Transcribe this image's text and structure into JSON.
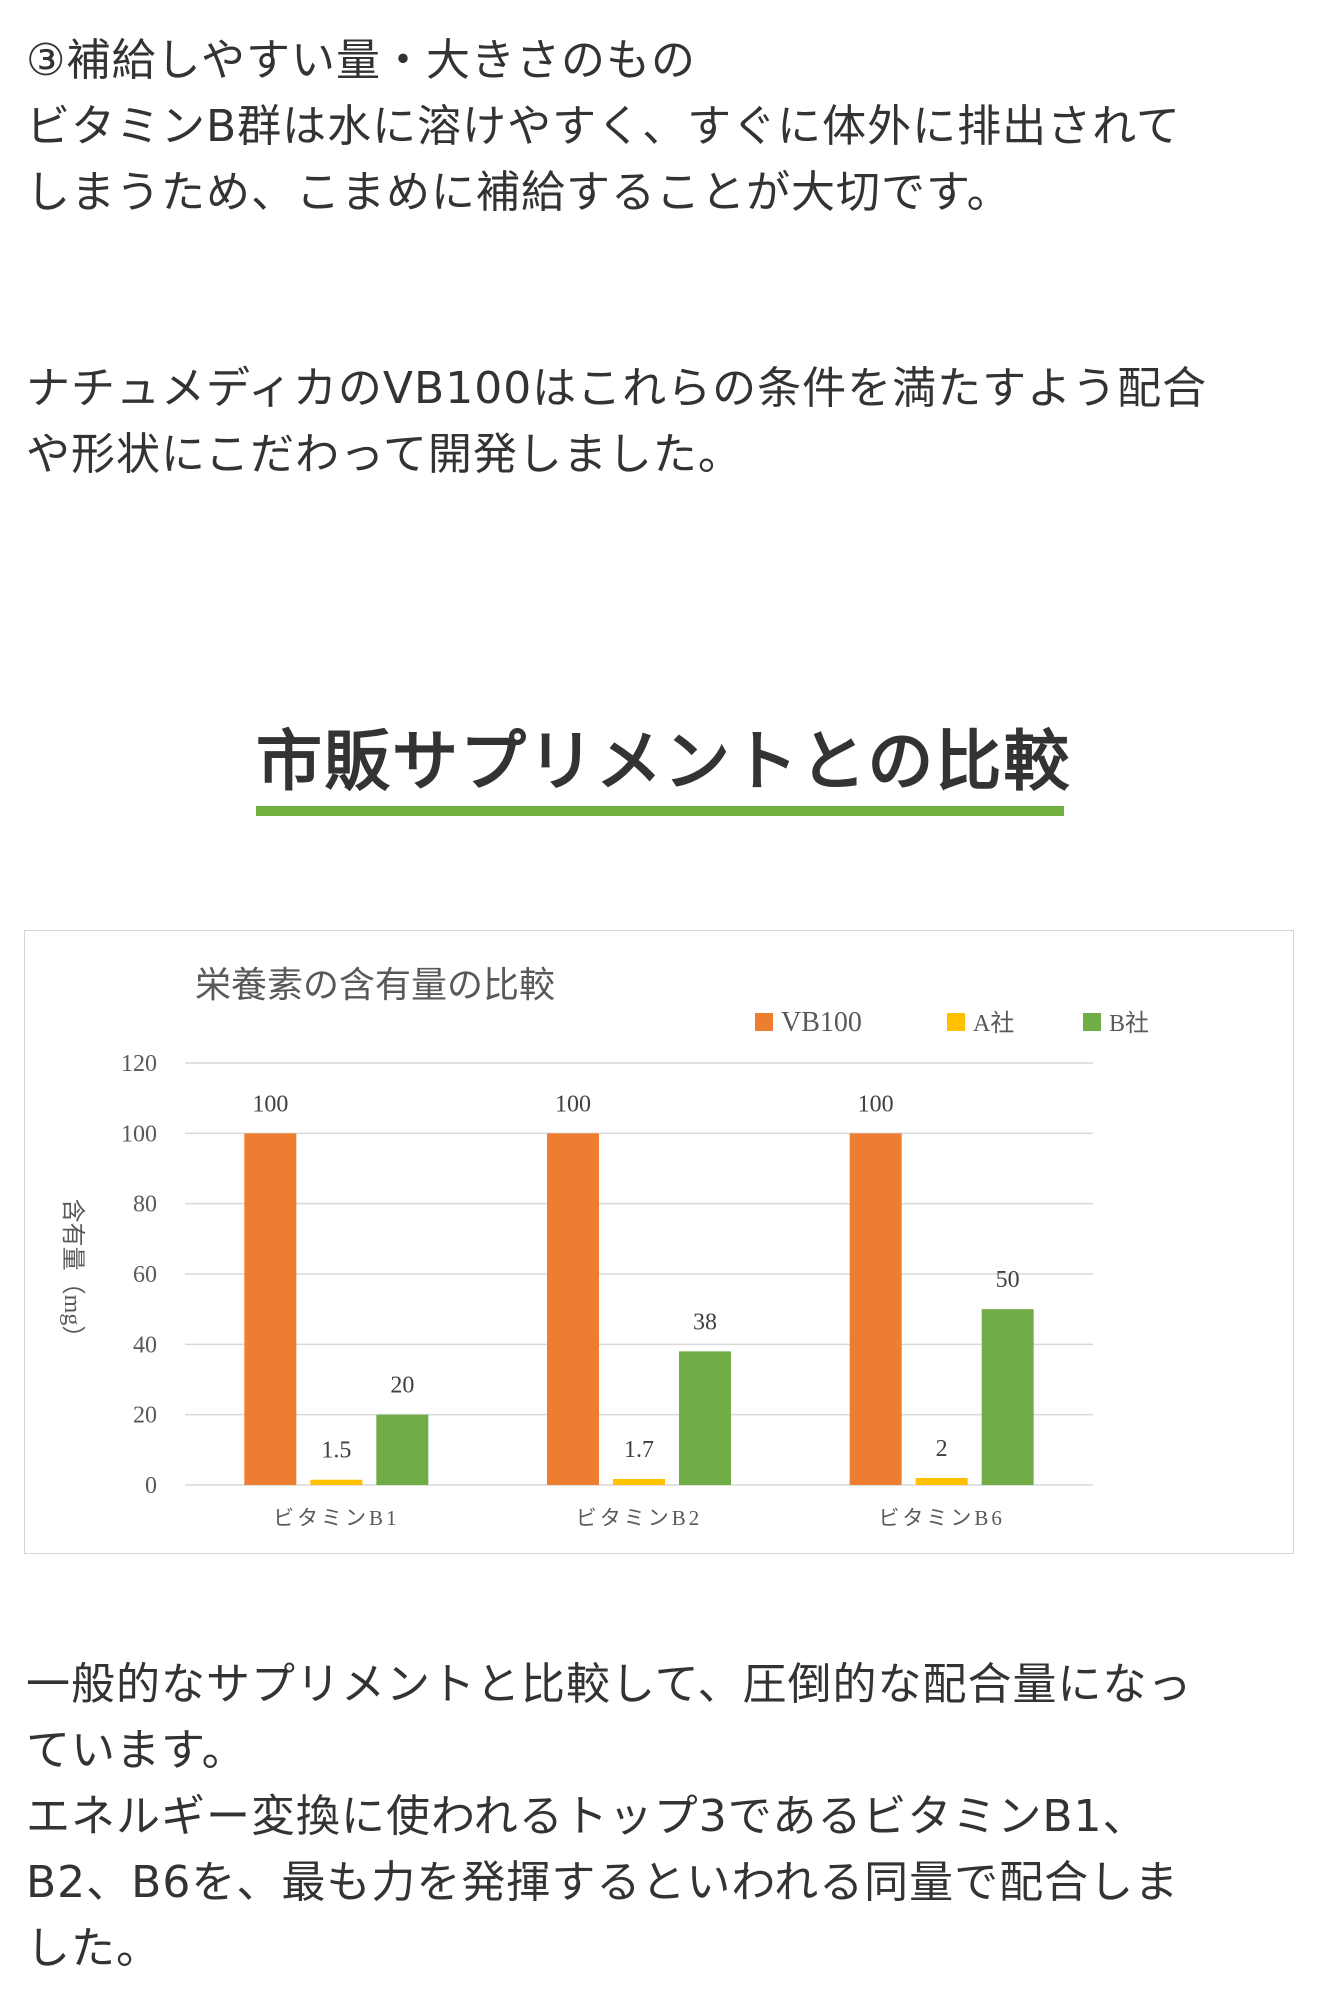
{
  "article": {
    "point3": {
      "line1": "③補給しやすい量・大きさのもの",
      "line2": "ビタミンB群は水に溶けやすく、すぐに体外に排出されて",
      "line3": "しまうため、こまめに補給することが大切です。"
    },
    "product_note": {
      "line1": "ナチュメディカのVB100はこれらの条件を満たすよう配合",
      "line2": "や形状にこだわって開発しました。"
    },
    "section_heading": "市販サプリメントとの比較",
    "conclusion": {
      "line1": "一般的なサプリメントと比較して、圧倒的な配合量になっ",
      "line2": "ています。",
      "line3": "エネルギー変換に使われるトップ3であるビタミンB1、",
      "line4": "B2、B6を、最も力を発揮するといわれる同量で配合しま",
      "line5": "した。"
    }
  },
  "colors": {
    "accent_underline": "#6fb13c",
    "vb100": "#ed7d31",
    "company_a": "#ffc000",
    "company_b": "#70ad47"
  },
  "chart_data": {
    "type": "bar",
    "title": "栄養素の含有量の比較",
    "ylabel": "含有量（mg）",
    "xlabel": "",
    "categories": [
      "ビタミンB1",
      "ビタミンB2",
      "ビタミンB6"
    ],
    "series": [
      {
        "name": "VB100",
        "color": "#ed7d31",
        "values": [
          100,
          100,
          100
        ]
      },
      {
        "name": "A社",
        "color": "#ffc000",
        "values": [
          1.5,
          1.7,
          2
        ]
      },
      {
        "name": "B社",
        "color": "#70ad47",
        "values": [
          20,
          38,
          50
        ]
      }
    ],
    "ylim": [
      0,
      120
    ],
    "yticks": [
      0,
      20,
      40,
      60,
      80,
      100,
      120
    ],
    "grid": true,
    "legend_position": "top-right",
    "data_labels": true
  }
}
